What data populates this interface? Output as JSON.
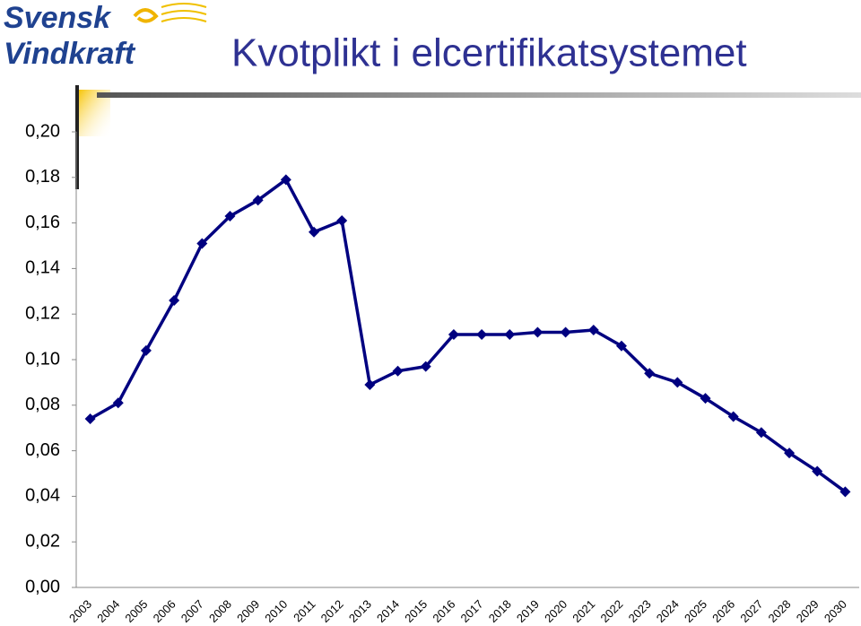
{
  "logo": [
    "Svensk",
    "Vindkraft"
  ],
  "chart_data": {
    "type": "line",
    "title": "Kvotplikt i elcertifikatsystemet",
    "categories": [
      "2003",
      "2004",
      "2005",
      "2006",
      "2007",
      "2008",
      "2009",
      "2010",
      "2011",
      "2012",
      "2013",
      "2014",
      "2015",
      "2016",
      "2017",
      "2018",
      "2019",
      "2020",
      "2021",
      "2022",
      "2023",
      "2024",
      "2025",
      "2026",
      "2027",
      "2028",
      "2029",
      "2030"
    ],
    "values": [
      0.074,
      0.081,
      0.104,
      0.126,
      0.151,
      0.163,
      0.17,
      0.179,
      0.156,
      0.161,
      0.089,
      0.095,
      0.097,
      0.111,
      0.111,
      0.111,
      0.112,
      0.112,
      0.113,
      0.106,
      0.094,
      0.09,
      0.083,
      0.075,
      0.068,
      0.059,
      0.051,
      0.042
    ],
    "color": "#000080",
    "ylim": [
      0,
      0.2
    ],
    "yticks": [
      {
        "value": 0,
        "label": "0,00"
      },
      {
        "value": 0.02,
        "label": "0,02"
      },
      {
        "value": 0.04,
        "label": "0,04"
      },
      {
        "value": 0.06,
        "label": "0,06"
      },
      {
        "value": 0.08,
        "label": "0,08"
      },
      {
        "value": 0.1,
        "label": "0,10"
      },
      {
        "value": 0.12,
        "label": "0,12"
      },
      {
        "value": 0.14,
        "label": "0,14"
      },
      {
        "value": 0.16,
        "label": "0,16"
      },
      {
        "value": 0.18,
        "label": "0,18"
      },
      {
        "value": 0.2,
        "label": "0,20"
      }
    ],
    "grid": false
  }
}
